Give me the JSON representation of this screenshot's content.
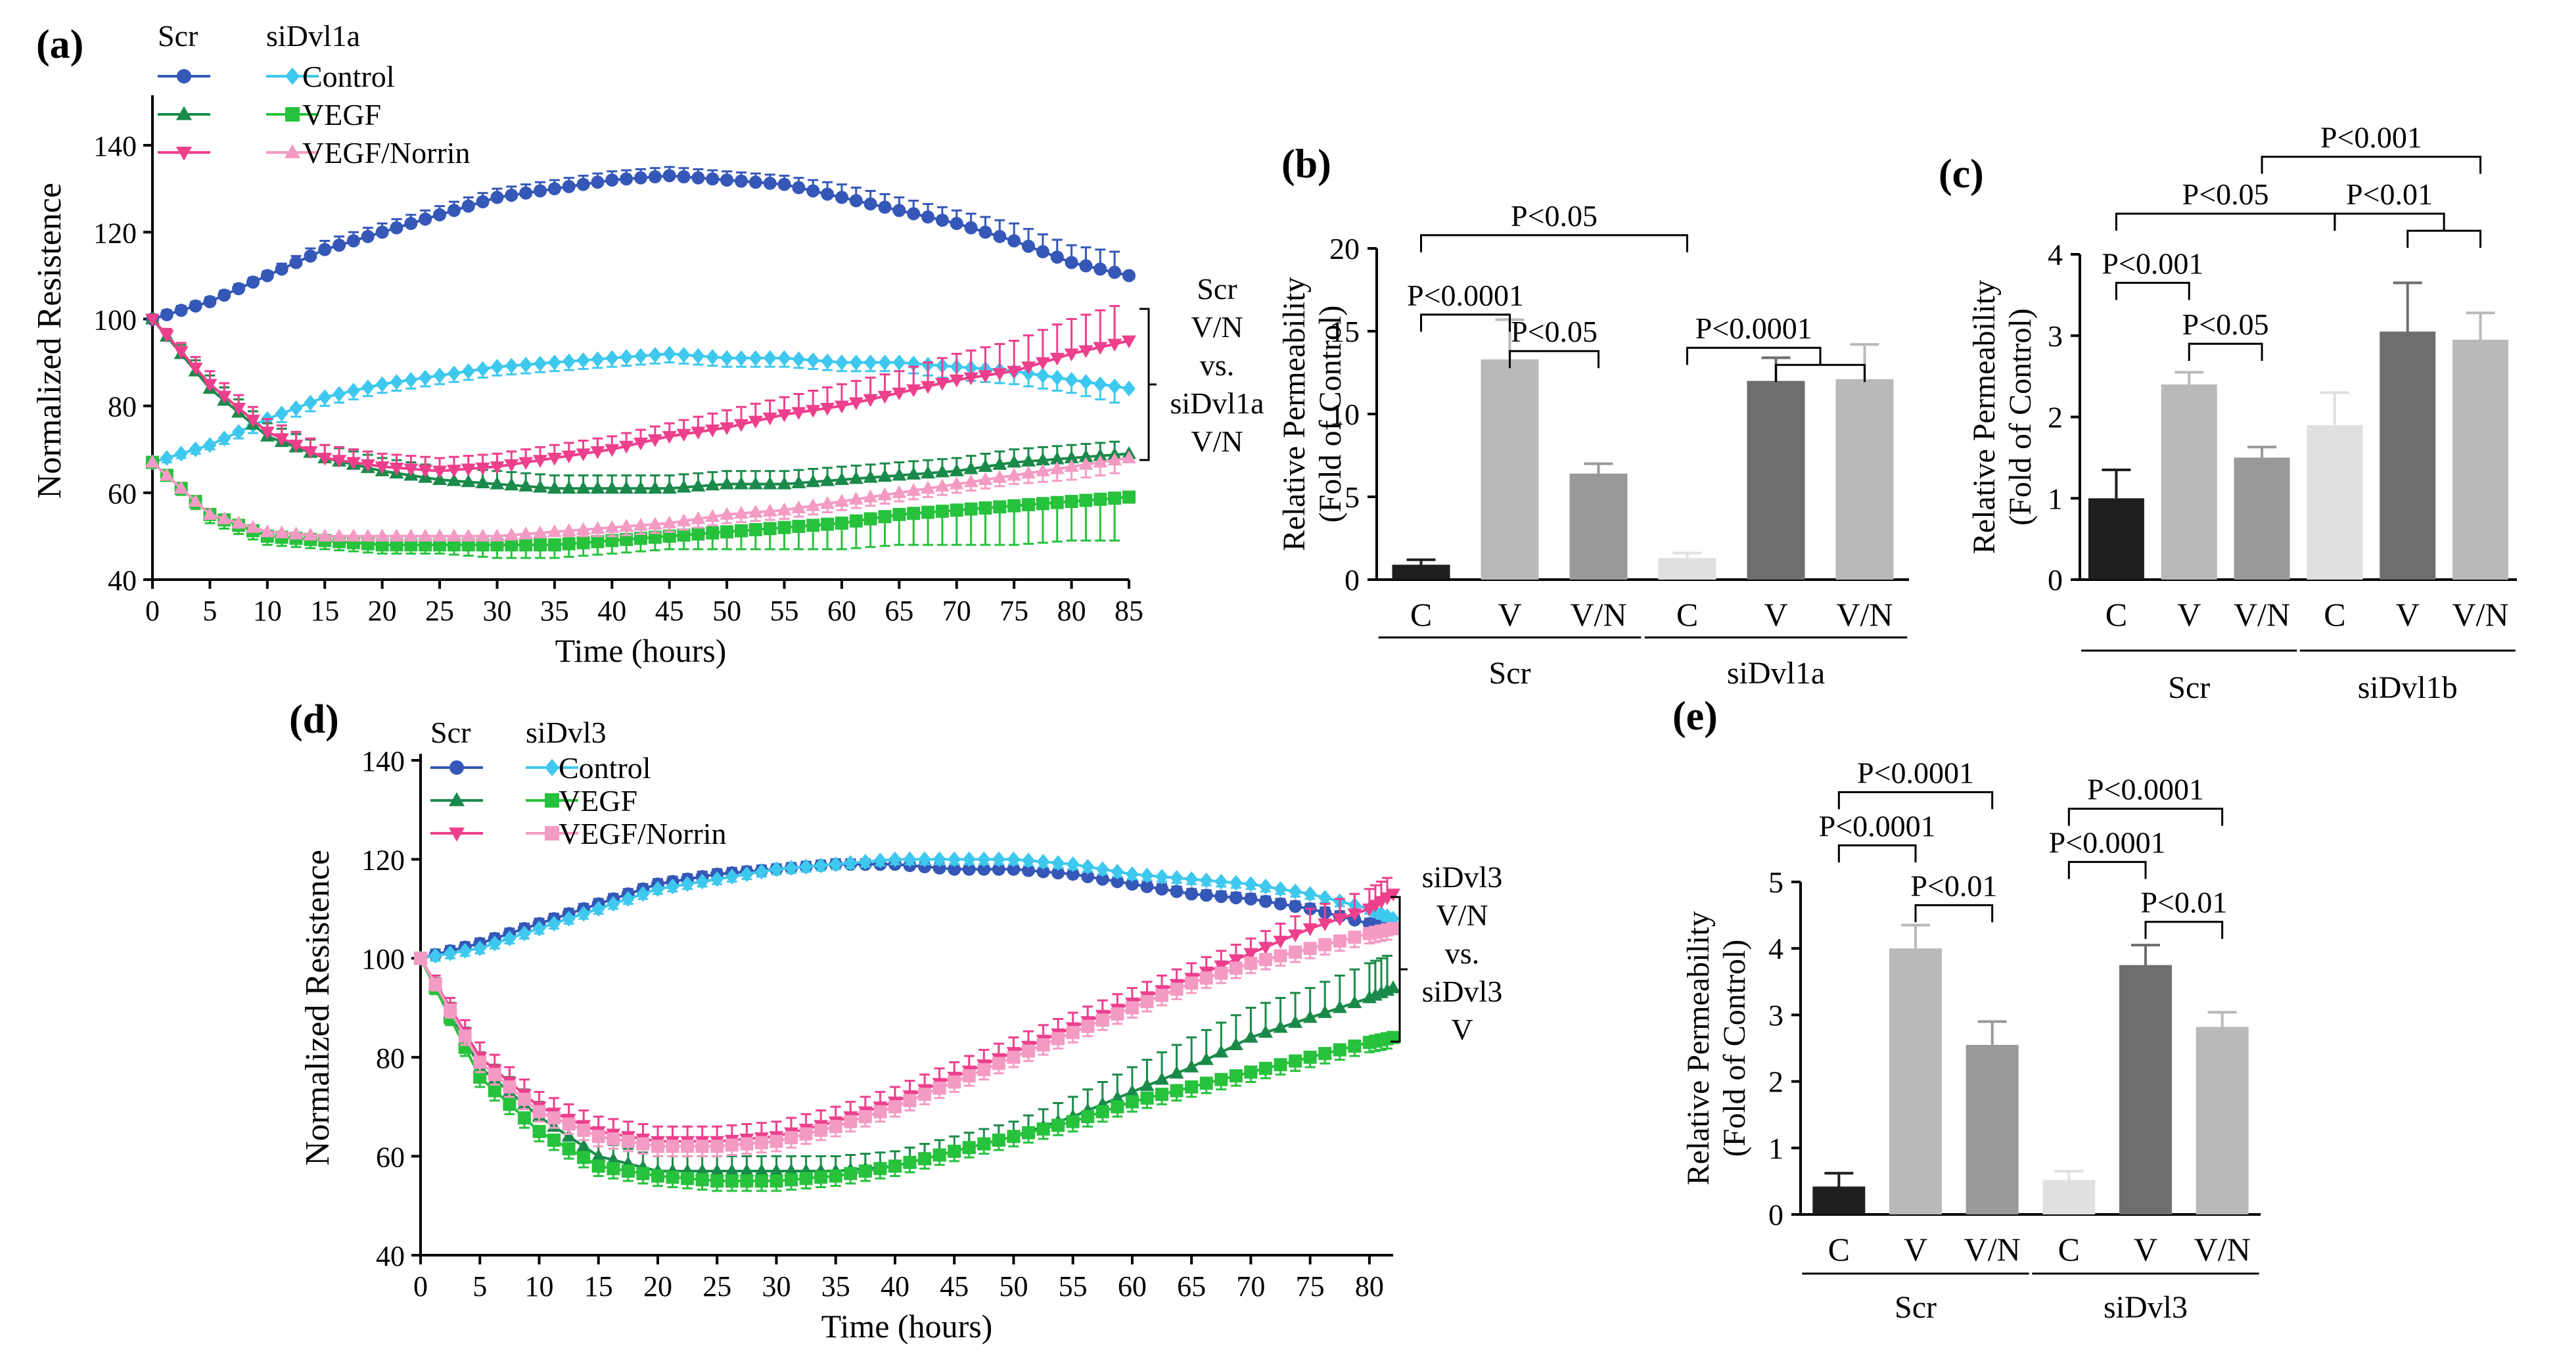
{
  "colors": {
    "scr_control": "#3557b7",
    "sidvl_control": "#3ec8ee",
    "scr_vegf": "#1a8a4a",
    "sidvl_vegf": "#27c23c",
    "scr_vn": "#ee3f8d",
    "sidvl_vn": "#f49bc4",
    "bar_black": "#1e1e1e",
    "bar_light": "#b9b9b9",
    "bar_mid": "#999999",
    "bar_vlight": "#e0e0e0",
    "bar_dark": "#6e6e6e"
  },
  "chart_data": [
    {
      "id": "a",
      "type": "line",
      "panel_label": "(a)",
      "xlabel": "Time (hours)",
      "ylabel": "Normalized Resistence",
      "xlim": [
        0,
        85
      ],
      "ylim": [
        40,
        150
      ],
      "xticks": [
        0,
        5,
        10,
        15,
        20,
        25,
        30,
        35,
        40,
        45,
        50,
        55,
        60,
        65,
        70,
        75,
        80,
        85
      ],
      "yticks": [
        40,
        60,
        80,
        100,
        120,
        140
      ],
      "legend": {
        "col1": "Scr",
        "col2": "siDvl1a",
        "rows": [
          "Control",
          "VEGF",
          "VEGF/Norrin"
        ]
      },
      "bracket_label": [
        "Scr",
        "V/N",
        "vs.",
        "siDvl1a",
        "V/N"
      ],
      "x": [
        0,
        5,
        10,
        15,
        20,
        25,
        30,
        35,
        40,
        45,
        50,
        55,
        60,
        65,
        70,
        75,
        80,
        85
      ],
      "series": [
        {
          "name": "Scr Control",
          "marker": "circle",
          "color_key": "scr_control",
          "values": [
            100,
            104,
            110,
            116,
            120,
            124,
            128,
            130,
            132,
            133,
            132,
            131,
            128,
            125,
            122,
            118,
            113,
            110
          ],
          "errors": [
            1,
            1,
            1,
            2,
            2,
            2,
            2,
            2,
            2,
            2,
            2,
            2,
            3,
            3,
            3,
            4,
            4,
            5
          ]
        },
        {
          "name": "siDvl1a Control",
          "marker": "diamond",
          "color_key": "sidvl_control",
          "values": [
            67,
            71,
            77,
            82,
            85,
            87,
            89,
            90,
            91,
            92,
            91,
            91,
            90,
            90,
            89,
            88,
            86,
            84
          ],
          "errors": [
            1,
            1,
            2,
            2,
            2,
            2,
            2,
            2,
            2,
            2,
            2,
            2,
            2,
            2,
            3,
            3,
            3,
            4
          ]
        },
        {
          "name": "Scr VEGF",
          "marker": "triangle",
          "color_key": "scr_vegf",
          "values": [
            100,
            84,
            73,
            68,
            65,
            63,
            62,
            61,
            61,
            61,
            62,
            62,
            63,
            64,
            65,
            67,
            68,
            69
          ],
          "errors": [
            1,
            3,
            3,
            3,
            3,
            3,
            3,
            3,
            3,
            3,
            3,
            3,
            3,
            3,
            3,
            3,
            3,
            3
          ]
        },
        {
          "name": "siDvl1a VEGF",
          "marker": "square",
          "color_key": "sidvl_vegf",
          "values": [
            67,
            55,
            50,
            49,
            48,
            48,
            48,
            48,
            49,
            50,
            51,
            52,
            53,
            55,
            56,
            57,
            58,
            59
          ],
          "errors": [
            1,
            2,
            2,
            2,
            2,
            2,
            3,
            3,
            3,
            3,
            4,
            5,
            6,
            7,
            8,
            9,
            9,
            10
          ]
        },
        {
          "name": "Scr VEGF/Norrin",
          "marker": "triangle-down",
          "color_key": "scr_vn",
          "values": [
            100,
            85,
            74,
            68,
            66,
            65,
            66,
            68,
            70,
            73,
            75,
            78,
            80,
            83,
            86,
            88,
            92,
            95
          ],
          "errors": [
            1,
            3,
            3,
            3,
            3,
            3,
            3,
            3,
            3,
            3,
            4,
            4,
            5,
            5,
            6,
            7,
            8,
            9
          ]
        },
        {
          "name": "siDvl1a VEGF/Norrin",
          "marker": "triangle",
          "color_key": "sidvl_vn",
          "values": [
            67,
            55,
            51,
            50,
            50,
            50,
            50,
            51,
            52,
            53,
            55,
            56,
            58,
            60,
            62,
            64,
            66,
            68
          ],
          "errors": [
            1,
            1,
            1,
            1,
            1,
            1,
            1,
            1,
            2,
            2,
            2,
            2,
            2,
            2,
            2,
            2,
            3,
            3
          ]
        }
      ]
    },
    {
      "id": "b",
      "type": "bar",
      "panel_label": "(b)",
      "ylabel_lines": [
        "Relative Permeability",
        "(Fold of Control)"
      ],
      "ylim": [
        0,
        20
      ],
      "yticks": [
        0,
        5,
        10,
        15,
        20
      ],
      "categories": [
        "C",
        "V",
        "V/N",
        "C",
        "V",
        "V/N"
      ],
      "values": [
        0.9,
        13.3,
        6.4,
        1.3,
        12.0,
        12.1
      ],
      "errors": [
        0.3,
        2.4,
        0.6,
        0.3,
        1.4,
        2.1
      ],
      "bar_color_keys": [
        "bar_black",
        "bar_light",
        "bar_mid",
        "bar_vlight",
        "bar_dark",
        "bar_light"
      ],
      "groups": [
        {
          "name": "Scr",
          "start": 0,
          "end": 2
        },
        {
          "name": "siDvl1a",
          "start": 3,
          "end": 5
        }
      ],
      "annotations": [
        {
          "text": "P<0.05",
          "from": [
            0
          ],
          "to": [
            3
          ],
          "level": 20.8
        },
        {
          "text": "P<0.0001",
          "from": [
            0
          ],
          "to": [
            1
          ],
          "level": 16.0
        },
        {
          "text": "P<0.05",
          "from": [
            1
          ],
          "to": [
            2
          ],
          "level": 13.8
        },
        {
          "text": "P<0.0001",
          "from": [
            3
          ],
          "to": [
            4,
            5
          ],
          "level": 14.0
        }
      ]
    },
    {
      "id": "c",
      "type": "bar",
      "panel_label": "(c)",
      "ylabel_lines": [
        "Relative Permeability",
        "(Fold of Control)"
      ],
      "ylim": [
        0,
        4
      ],
      "yticks": [
        0,
        1,
        2,
        3,
        4
      ],
      "categories": [
        "C",
        "V",
        "V/N",
        "C",
        "V",
        "V/N"
      ],
      "values": [
        1.0,
        2.4,
        1.5,
        1.9,
        3.05,
        2.95
      ],
      "errors": [
        0.35,
        0.15,
        0.13,
        0.4,
        0.6,
        0.33
      ],
      "bar_color_keys": [
        "bar_black",
        "bar_light",
        "bar_mid",
        "bar_vlight",
        "bar_dark",
        "bar_light"
      ],
      "groups": [
        {
          "name": "Scr",
          "start": 0,
          "end": 2
        },
        {
          "name": "siDvl1b",
          "start": 3,
          "end": 5
        }
      ],
      "annotations": [
        {
          "text": "P<0.001",
          "from": [
            2
          ],
          "to": [
            5
          ],
          "level": 5.2
        },
        {
          "text": "P<0.05",
          "from": [
            0
          ],
          "to": [
            3
          ],
          "level": 4.5
        },
        {
          "text": "P<0.01",
          "from": [
            3
          ],
          "to": [
            4,
            5
          ],
          "level": 4.5
        },
        {
          "text": "P<0.001",
          "from": [
            0
          ],
          "to": [
            1
          ],
          "level": 3.65
        },
        {
          "text": "P<0.05",
          "from": [
            1
          ],
          "to": [
            2
          ],
          "level": 2.9
        }
      ]
    },
    {
      "id": "d",
      "type": "line",
      "panel_label": "(d)",
      "xlabel": "Time (hours)",
      "ylabel": "Normalized Resistence",
      "xlim": [
        0,
        82
      ],
      "ylim": [
        40,
        140
      ],
      "xticks": [
        0,
        5,
        10,
        15,
        20,
        25,
        30,
        35,
        40,
        45,
        50,
        55,
        60,
        65,
        70,
        75,
        80
      ],
      "yticks": [
        40,
        60,
        80,
        100,
        120,
        140
      ],
      "legend": {
        "col1": "Scr",
        "col2": "siDvl3",
        "rows": [
          "Control",
          "VEGF",
          "VEGF/Norrin"
        ]
      },
      "bracket_label": [
        "siDvl3",
        "V/N",
        "vs.",
        "siDvl3",
        "V"
      ],
      "x": [
        0,
        5,
        10,
        15,
        20,
        25,
        30,
        35,
        40,
        45,
        50,
        55,
        60,
        65,
        70,
        75,
        80,
        82
      ],
      "series": [
        {
          "name": "Scr Control",
          "marker": "circle",
          "color_key": "scr_control",
          "values": [
            100,
            103,
            107,
            111,
            115,
            117,
            118,
            119,
            119,
            118,
            118,
            117,
            115,
            113,
            112,
            110,
            107,
            106
          ],
          "errors": [
            1,
            1,
            1,
            1,
            1,
            1,
            1,
            1,
            1,
            1,
            1,
            1,
            1,
            1,
            1,
            1,
            1,
            1
          ]
        },
        {
          "name": "siDvl3 Control",
          "marker": "diamond",
          "color_key": "sidvl_control",
          "values": [
            100,
            102,
            106,
            110,
            114,
            116,
            118,
            119,
            120,
            120,
            120,
            119,
            117,
            116,
            115,
            113,
            110,
            108
          ],
          "errors": [
            1,
            1,
            1,
            1,
            1,
            1,
            1,
            1,
            1,
            1,
            1,
            1,
            1,
            1,
            1,
            1,
            1,
            1
          ]
        },
        {
          "name": "Scr VEGF",
          "marker": "triangle",
          "color_key": "scr_vegf",
          "values": [
            100,
            78,
            68,
            60,
            57,
            57,
            57,
            57,
            58,
            61,
            64,
            68,
            73,
            78,
            84,
            88,
            92,
            94
          ],
          "errors": [
            1,
            3,
            3,
            3,
            3,
            3,
            3,
            3,
            3,
            3,
            3,
            4,
            5,
            6,
            6,
            6,
            7,
            7
          ]
        },
        {
          "name": "siDvl3 VEGF",
          "marker": "square",
          "color_key": "sidvl_vegf",
          "values": [
            100,
            76,
            65,
            58,
            56,
            55,
            55,
            56,
            58,
            61,
            64,
            67,
            71,
            74,
            77,
            80,
            83,
            84
          ],
          "errors": [
            1,
            2,
            2,
            2,
            2,
            2,
            2,
            2,
            2,
            2,
            2,
            2,
            2,
            2,
            2,
            2,
            2,
            2
          ]
        },
        {
          "name": "Scr VEGF/Norrin",
          "marker": "triangle-down",
          "color_key": "scr_vn",
          "values": [
            100,
            80,
            70,
            65,
            63,
            63,
            64,
            67,
            71,
            76,
            81,
            86,
            91,
            96,
            101,
            106,
            110,
            113
          ],
          "errors": [
            1,
            3,
            3,
            3,
            3,
            3,
            3,
            3,
            3,
            3,
            3,
            3,
            3,
            3,
            3,
            4,
            4,
            4
          ]
        },
        {
          "name": "siDvl3 VEGF/Norrin",
          "marker": "square",
          "color_key": "sidvl_vn",
          "values": [
            100,
            79,
            69,
            64,
            62,
            62,
            63,
            66,
            70,
            75,
            80,
            85,
            90,
            95,
            99,
            102,
            105,
            106
          ],
          "errors": [
            1,
            2,
            2,
            2,
            2,
            2,
            2,
            2,
            2,
            2,
            2,
            2,
            2,
            2,
            2,
            2,
            2,
            2
          ]
        }
      ]
    },
    {
      "id": "e",
      "type": "bar",
      "panel_label": "(e)",
      "ylabel_lines": [
        "Relative Permeability",
        "(Fold of Control)"
      ],
      "ylim": [
        0,
        5
      ],
      "yticks": [
        0,
        1,
        2,
        3,
        4,
        5
      ],
      "categories": [
        "C",
        "V",
        "V/N",
        "C",
        "V",
        "V/N"
      ],
      "values": [
        0.42,
        4.0,
        2.55,
        0.52,
        3.75,
        2.82
      ],
      "errors": [
        0.2,
        0.35,
        0.35,
        0.13,
        0.3,
        0.22
      ],
      "bar_color_keys": [
        "bar_black",
        "bar_light",
        "bar_mid",
        "bar_vlight",
        "bar_dark",
        "bar_light"
      ],
      "groups": [
        {
          "name": "Scr",
          "start": 0,
          "end": 2
        },
        {
          "name": "siDvl3",
          "start": 3,
          "end": 5
        }
      ],
      "annotations": [
        {
          "text": "P<0.0001",
          "from": [
            0
          ],
          "to": [
            2
          ],
          "level": 6.35
        },
        {
          "text": "P<0.0001",
          "from": [
            0
          ],
          "to": [
            1
          ],
          "level": 5.55
        },
        {
          "text": "P<0.01",
          "from": [
            1
          ],
          "to": [
            2
          ],
          "level": 4.65
        },
        {
          "text": "P<0.0001",
          "from": [
            3
          ],
          "to": [
            5
          ],
          "level": 6.1
        },
        {
          "text": "P<0.0001",
          "from": [
            3
          ],
          "to": [
            4
          ],
          "level": 5.3
        },
        {
          "text": "P<0.01",
          "from": [
            4
          ],
          "to": [
            5
          ],
          "level": 4.4
        }
      ]
    }
  ]
}
